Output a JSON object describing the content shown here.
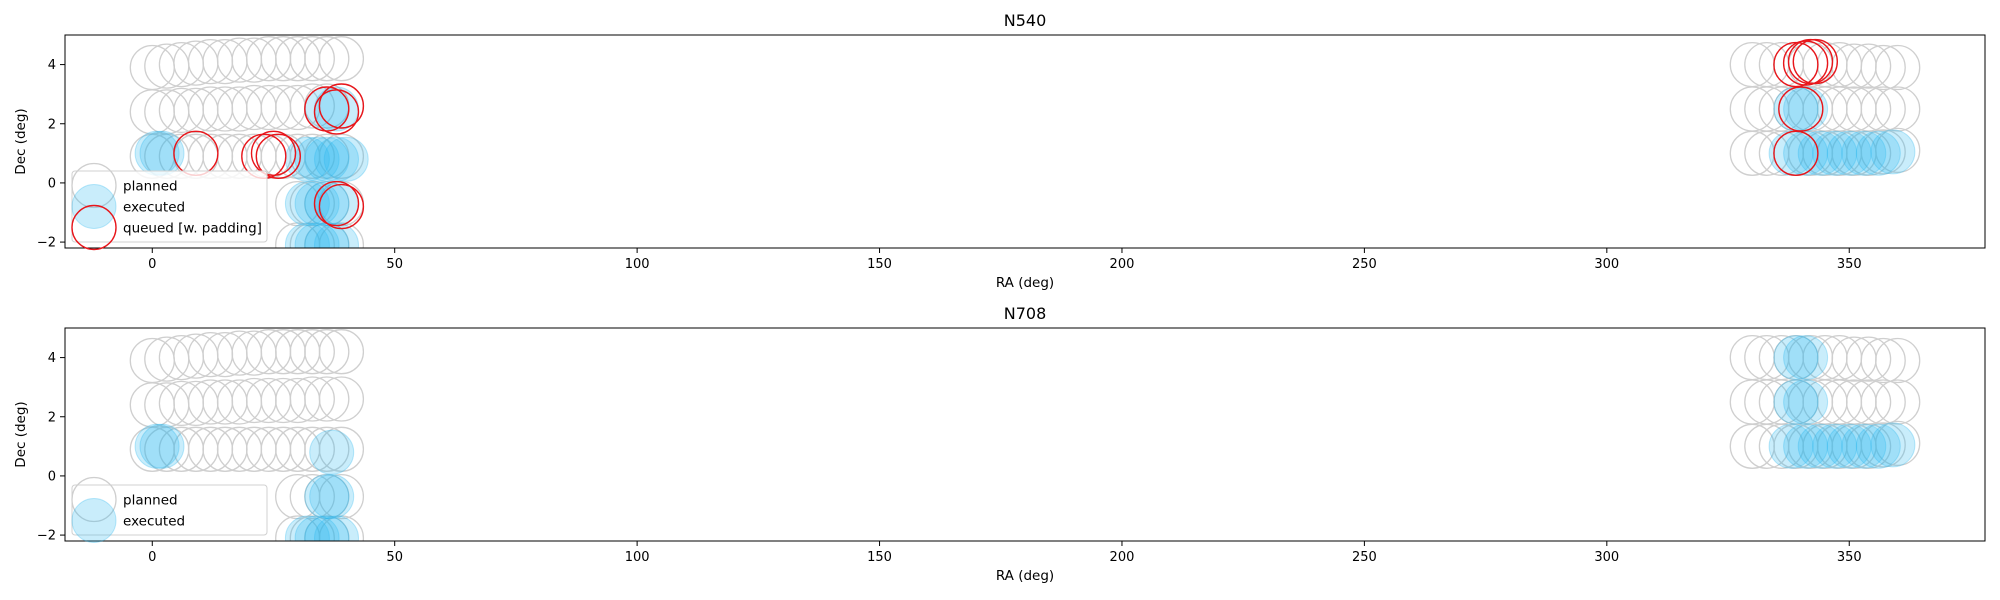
{
  "chart_data": [
    {
      "type": "scatter",
      "title": "N540",
      "xlabel": "RA (deg)",
      "ylabel": "Dec (deg)",
      "xlim": [
        -18,
        378
      ],
      "ylim": [
        -2.2,
        5.0
      ],
      "xticks": [
        0,
        50,
        100,
        150,
        200,
        250,
        300,
        350
      ],
      "yticks": [
        -2,
        0,
        2,
        4
      ],
      "legend_position": "lower-left",
      "series": [
        {
          "name": "planned",
          "style": "hollow-gray",
          "points": [
            [
              0,
              3.9
            ],
            [
              3,
              3.95
            ],
            [
              6,
              4.0
            ],
            [
              9,
              4.05
            ],
            [
              12,
              4.1
            ],
            [
              15,
              4.1
            ],
            [
              18,
              4.15
            ],
            [
              21,
              4.15
            ],
            [
              24,
              4.2
            ],
            [
              27,
              4.2
            ],
            [
              30,
              4.2
            ],
            [
              33,
              4.2
            ],
            [
              36,
              4.2
            ],
            [
              39,
              4.2
            ],
            [
              0,
              2.4
            ],
            [
              3,
              2.4
            ],
            [
              6,
              2.45
            ],
            [
              9,
              2.45
            ],
            [
              12,
              2.5
            ],
            [
              15,
              2.5
            ],
            [
              18,
              2.5
            ],
            [
              21,
              2.55
            ],
            [
              24,
              2.55
            ],
            [
              27,
              2.55
            ],
            [
              30,
              2.55
            ],
            [
              33,
              2.6
            ],
            [
              36,
              2.6
            ],
            [
              39,
              2.6
            ],
            [
              0,
              0.9
            ],
            [
              3,
              0.9
            ],
            [
              6,
              0.9
            ],
            [
              9,
              0.9
            ],
            [
              12,
              0.9
            ],
            [
              15,
              0.9
            ],
            [
              18,
              0.9
            ],
            [
              21,
              0.9
            ],
            [
              24,
              0.9
            ],
            [
              27,
              0.9
            ],
            [
              30,
              0.9
            ],
            [
              33,
              0.9
            ],
            [
              36,
              0.9
            ],
            [
              39,
              0.9
            ],
            [
              30,
              -0.7
            ],
            [
              33,
              -0.7
            ],
            [
              36,
              -0.7
            ],
            [
              39,
              -0.7
            ],
            [
              30,
              -2.1
            ],
            [
              33,
              -2.1
            ],
            [
              36,
              -2.1
            ],
            [
              39,
              -2.1
            ],
            [
              330,
              4.0
            ],
            [
              333,
              4.0
            ],
            [
              336,
              4.0
            ],
            [
              339,
              4.0
            ],
            [
              342,
              4.0
            ],
            [
              345,
              4.0
            ],
            [
              348,
              4.0
            ],
            [
              351,
              3.95
            ],
            [
              354,
              3.95
            ],
            [
              357,
              3.9
            ],
            [
              360,
              3.9
            ],
            [
              330,
              2.5
            ],
            [
              333,
              2.5
            ],
            [
              336,
              2.5
            ],
            [
              339,
              2.5
            ],
            [
              342,
              2.5
            ],
            [
              345,
              2.5
            ],
            [
              348,
              2.5
            ],
            [
              351,
              2.5
            ],
            [
              354,
              2.5
            ],
            [
              357,
              2.5
            ],
            [
              360,
              2.5
            ],
            [
              330,
              1.0
            ],
            [
              333,
              1.0
            ],
            [
              336,
              1.0
            ],
            [
              339,
              1.0
            ],
            [
              342,
              1.0
            ],
            [
              345,
              1.0
            ],
            [
              348,
              1.0
            ],
            [
              351,
              1.0
            ],
            [
              354,
              1.0
            ],
            [
              357,
              1.05
            ],
            [
              360,
              1.1
            ]
          ]
        },
        {
          "name": "executed",
          "style": "filled-blue",
          "points": [
            [
              1,
              1.0
            ],
            [
              2,
              1.0
            ],
            [
              32,
              0.8
            ],
            [
              34,
              0.8
            ],
            [
              36,
              0.8
            ],
            [
              38,
              0.8
            ],
            [
              40,
              0.8
            ],
            [
              32,
              -0.7
            ],
            [
              34,
              -0.7
            ],
            [
              36,
              -0.7
            ],
            [
              38,
              -0.7
            ],
            [
              32,
              -2.1
            ],
            [
              34,
              -2.1
            ],
            [
              36,
              -2.1
            ],
            [
              38,
              -2.1
            ],
            [
              36,
              2.5
            ],
            [
              38,
              2.5
            ],
            [
              339,
              2.5
            ],
            [
              341,
              2.5
            ],
            [
              338,
              1.0
            ],
            [
              341,
              1.0
            ],
            [
              344,
              1.0
            ],
            [
              347,
              1.0
            ],
            [
              350,
              1.0
            ],
            [
              353,
              1.0
            ],
            [
              356,
              1.0
            ],
            [
              359,
              1.05
            ]
          ]
        },
        {
          "name": "queued [w. padding]",
          "style": "hollow-red",
          "points": [
            [
              9,
              1.0
            ],
            [
              23,
              0.9
            ],
            [
              25,
              1.0
            ],
            [
              26,
              0.9
            ],
            [
              36,
              2.5
            ],
            [
              38,
              2.4
            ],
            [
              39,
              2.6
            ],
            [
              38,
              -0.7
            ],
            [
              39,
              -0.8
            ],
            [
              339,
              4.0
            ],
            [
              341,
              4.05
            ],
            [
              342,
              4.1
            ],
            [
              343,
              4.1
            ],
            [
              340,
              2.5
            ],
            [
              339,
              1.0
            ]
          ]
        }
      ]
    },
    {
      "type": "scatter",
      "title": "N708",
      "xlabel": "RA (deg)",
      "ylabel": "Dec (deg)",
      "xlim": [
        -18,
        378
      ],
      "ylim": [
        -2.2,
        5.0
      ],
      "xticks": [
        0,
        50,
        100,
        150,
        200,
        250,
        300,
        350
      ],
      "yticks": [
        -2,
        0,
        2,
        4
      ],
      "legend_position": "lower-left",
      "series": [
        {
          "name": "planned",
          "style": "hollow-gray",
          "points": [
            [
              0,
              3.9
            ],
            [
              3,
              3.95
            ],
            [
              6,
              4.0
            ],
            [
              9,
              4.05
            ],
            [
              12,
              4.1
            ],
            [
              15,
              4.1
            ],
            [
              18,
              4.15
            ],
            [
              21,
              4.15
            ],
            [
              24,
              4.2
            ],
            [
              27,
              4.2
            ],
            [
              30,
              4.2
            ],
            [
              33,
              4.2
            ],
            [
              36,
              4.2
            ],
            [
              39,
              4.2
            ],
            [
              0,
              2.4
            ],
            [
              3,
              2.4
            ],
            [
              6,
              2.45
            ],
            [
              9,
              2.45
            ],
            [
              12,
              2.5
            ],
            [
              15,
              2.5
            ],
            [
              18,
              2.5
            ],
            [
              21,
              2.55
            ],
            [
              24,
              2.55
            ],
            [
              27,
              2.55
            ],
            [
              30,
              2.55
            ],
            [
              33,
              2.6
            ],
            [
              36,
              2.6
            ],
            [
              39,
              2.6
            ],
            [
              0,
              0.9
            ],
            [
              3,
              0.9
            ],
            [
              6,
              0.9
            ],
            [
              9,
              0.9
            ],
            [
              12,
              0.9
            ],
            [
              15,
              0.9
            ],
            [
              18,
              0.9
            ],
            [
              21,
              0.9
            ],
            [
              24,
              0.9
            ],
            [
              27,
              0.9
            ],
            [
              30,
              0.9
            ],
            [
              33,
              0.9
            ],
            [
              36,
              0.9
            ],
            [
              39,
              0.9
            ],
            [
              30,
              -0.7
            ],
            [
              33,
              -0.7
            ],
            [
              36,
              -0.7
            ],
            [
              39,
              -0.7
            ],
            [
              30,
              -2.1
            ],
            [
              33,
              -2.1
            ],
            [
              36,
              -2.1
            ],
            [
              39,
              -2.1
            ],
            [
              330,
              4.0
            ],
            [
              333,
              4.0
            ],
            [
              336,
              4.0
            ],
            [
              339,
              4.0
            ],
            [
              342,
              4.0
            ],
            [
              345,
              4.0
            ],
            [
              348,
              4.0
            ],
            [
              351,
              3.95
            ],
            [
              354,
              3.95
            ],
            [
              357,
              3.9
            ],
            [
              360,
              3.9
            ],
            [
              330,
              2.5
            ],
            [
              333,
              2.5
            ],
            [
              336,
              2.5
            ],
            [
              339,
              2.5
            ],
            [
              342,
              2.5
            ],
            [
              345,
              2.5
            ],
            [
              348,
              2.5
            ],
            [
              351,
              2.5
            ],
            [
              354,
              2.5
            ],
            [
              357,
              2.5
            ],
            [
              360,
              2.5
            ],
            [
              330,
              1.0
            ],
            [
              333,
              1.0
            ],
            [
              336,
              1.0
            ],
            [
              339,
              1.0
            ],
            [
              342,
              1.0
            ],
            [
              345,
              1.0
            ],
            [
              348,
              1.0
            ],
            [
              351,
              1.0
            ],
            [
              354,
              1.0
            ],
            [
              357,
              1.05
            ],
            [
              360,
              1.1
            ]
          ]
        },
        {
          "name": "executed",
          "style": "filled-blue",
          "points": [
            [
              1,
              1.0
            ],
            [
              2,
              1.0
            ],
            [
              37,
              0.8
            ],
            [
              36,
              -0.7
            ],
            [
              37,
              -0.7
            ],
            [
              32,
              -2.1
            ],
            [
              34,
              -2.1
            ],
            [
              36,
              -2.1
            ],
            [
              38,
              -2.1
            ],
            [
              339,
              4.0
            ],
            [
              341,
              4.0
            ],
            [
              339,
              2.5
            ],
            [
              341,
              2.5
            ],
            [
              338,
              1.0
            ],
            [
              341,
              1.0
            ],
            [
              344,
              1.0
            ],
            [
              347,
              1.0
            ],
            [
              350,
              1.0
            ],
            [
              353,
              1.0
            ],
            [
              356,
              1.0
            ],
            [
              359,
              1.05
            ]
          ]
        }
      ]
    }
  ]
}
